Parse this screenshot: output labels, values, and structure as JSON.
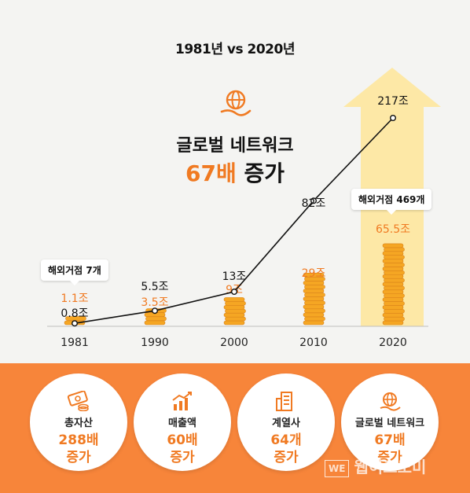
{
  "header": {
    "headline": "1981년 vs 2020년",
    "title_line1": "글로벌 네트워크",
    "title_hl": "67배",
    "title_rest": " 증가"
  },
  "badges": {
    "first": "해외거점 7개",
    "last": "해외거점 469개"
  },
  "chart_data": {
    "type": "line",
    "categories": [
      "1981",
      "1990",
      "2000",
      "2010",
      "2020"
    ],
    "series": [
      {
        "name": "총자산",
        "values": [
          0.8,
          5.5,
          13,
          82,
          217
        ],
        "labels": [
          "0.8조",
          "5.5조",
          "13조",
          "82조",
          "217조"
        ],
        "color": "#111111"
      },
      {
        "name": "매출액",
        "values": [
          1.1,
          3.5,
          9,
          29,
          65.5
        ],
        "labels": [
          "1.1조",
          "3.5조",
          "9조",
          "29조",
          "65.5조"
        ],
        "color": "#f07a22"
      }
    ],
    "coin_stacks": true,
    "highlight_arrow_color": "#fde8a6"
  },
  "circles": [
    {
      "label": "총자산",
      "value": "288배",
      "suffix": "증가",
      "icon": "money-icon"
    },
    {
      "label": "매출액",
      "value": "60배",
      "suffix": "증가",
      "icon": "growth-chart-icon"
    },
    {
      "label": "계열사",
      "value": "64개",
      "suffix": "증가",
      "icon": "building-icon"
    },
    {
      "label": "글로벌 네트워크",
      "value": "67배",
      "suffix": "증가",
      "icon": "globe-icon"
    }
  ],
  "watermark": {
    "box": "WE",
    "text": "웹이코노미"
  },
  "colors": {
    "accent": "#f07a22",
    "bottom_band": "#f7853a",
    "arrow": "#fde8a6"
  }
}
